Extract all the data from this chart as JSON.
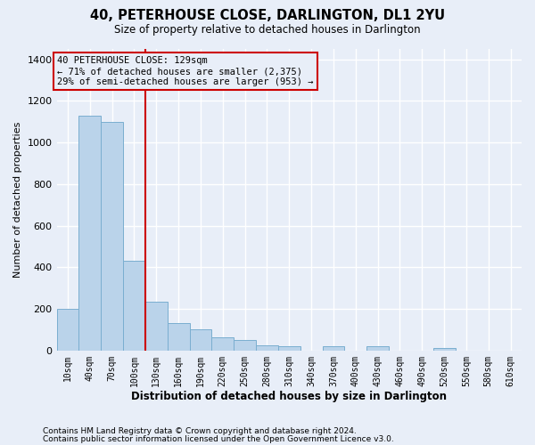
{
  "title": "40, PETERHOUSE CLOSE, DARLINGTON, DL1 2YU",
  "subtitle": "Size of property relative to detached houses in Darlington",
  "xlabel": "Distribution of detached houses by size in Darlington",
  "ylabel": "Number of detached properties",
  "bar_color": "#bad3ea",
  "bar_edge_color": "#7aaed0",
  "background_color": "#e8eef8",
  "grid_color": "#ffffff",
  "annotation_box_color": "#cc0000",
  "vline_color": "#cc0000",
  "annotation_text": "40 PETERHOUSE CLOSE: 129sqm\n← 71% of detached houses are smaller (2,375)\n29% of semi-detached houses are larger (953) →",
  "footnote1": "Contains HM Land Registry data © Crown copyright and database right 2024.",
  "footnote2": "Contains public sector information licensed under the Open Government Licence v3.0.",
  "bin_labels": [
    "10sqm",
    "40sqm",
    "70sqm",
    "100sqm",
    "130sqm",
    "160sqm",
    "190sqm",
    "220sqm",
    "250sqm",
    "280sqm",
    "310sqm",
    "340sqm",
    "370sqm",
    "400sqm",
    "430sqm",
    "460sqm",
    "490sqm",
    "520sqm",
    "550sqm",
    "580sqm",
    "610sqm"
  ],
  "bin_edges": [
    10,
    40,
    70,
    100,
    130,
    160,
    190,
    220,
    250,
    280,
    310,
    340,
    370,
    400,
    430,
    460,
    490,
    520,
    550,
    580,
    610
  ],
  "bar_heights": [
    200,
    1130,
    1100,
    430,
    235,
    130,
    100,
    65,
    50,
    25,
    20,
    0,
    20,
    0,
    20,
    0,
    0,
    10,
    0,
    0,
    0
  ],
  "vline_x": 130,
  "ylim": [
    0,
    1450
  ],
  "yticks": [
    0,
    200,
    400,
    600,
    800,
    1000,
    1200,
    1400
  ],
  "figsize": [
    6.0,
    5.0
  ],
  "dpi": 100
}
